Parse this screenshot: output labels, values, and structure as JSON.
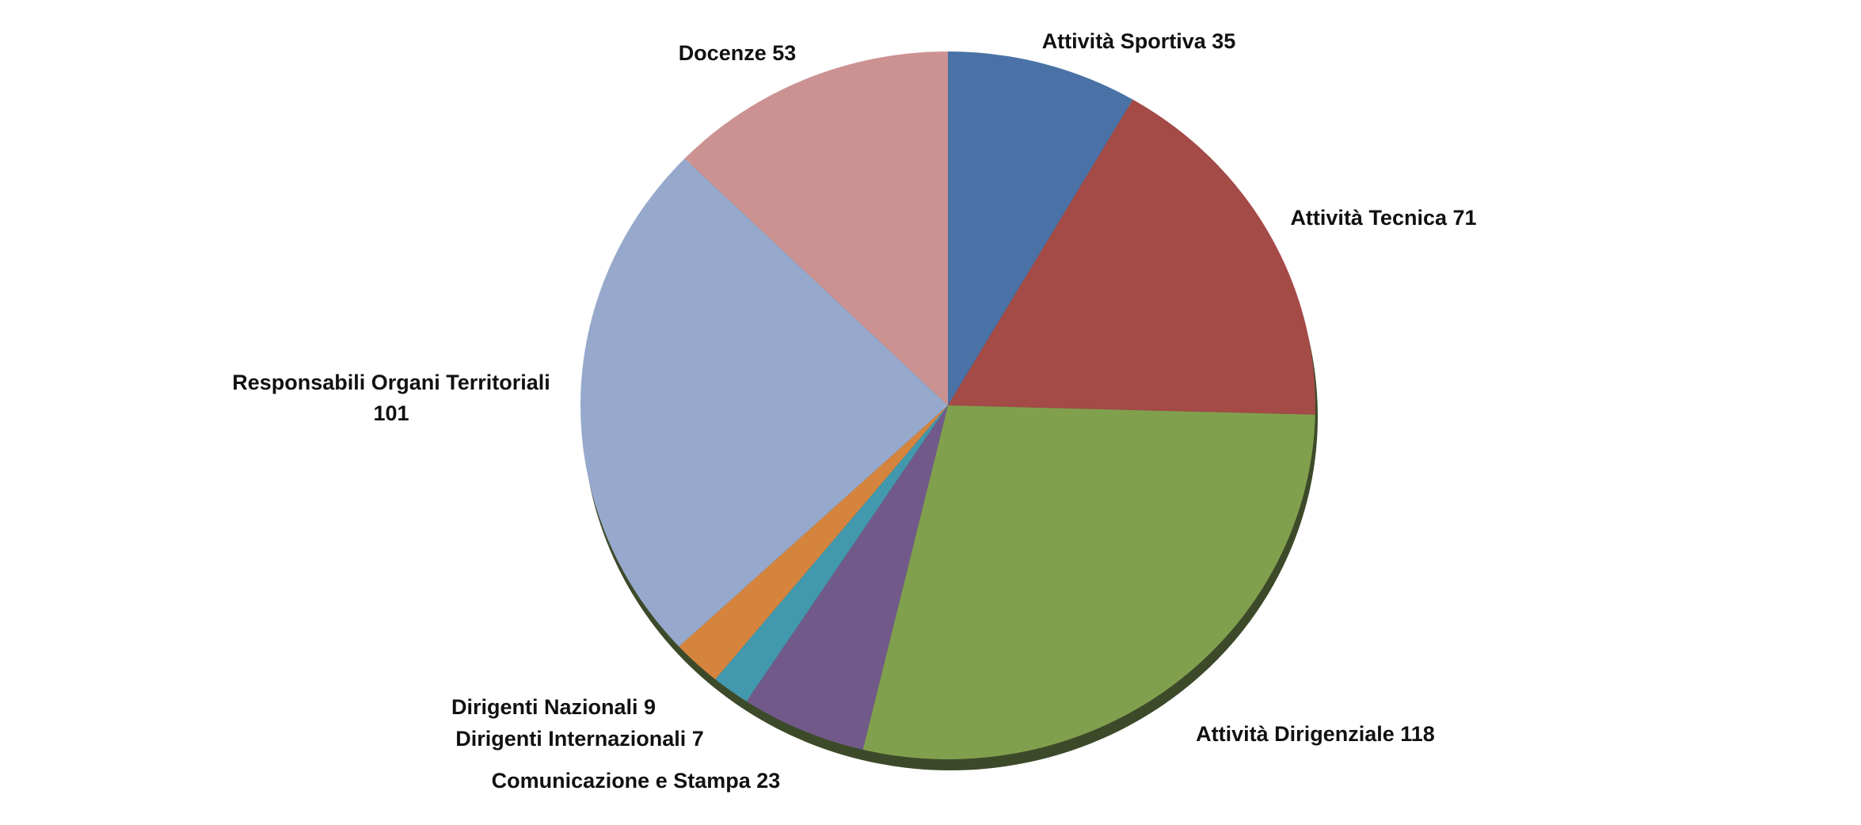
{
  "chart_data": {
    "type": "pie",
    "categories": [
      "Attività Sportiva",
      "Attività Tecnica",
      "Attività Dirigenziale",
      "Comunicazione e Stampa",
      "Dirigenti Internazionali",
      "Dirigenti Nazionali",
      "Responsabili Organi Territoriali",
      "Docenze"
    ],
    "values": [
      35,
      71,
      118,
      23,
      7,
      9,
      101,
      53
    ],
    "colors": [
      "#4a72a6",
      "#a44a47",
      "#81a04e",
      "#715a8a",
      "#4298ad",
      "#d5843e",
      "#96a9cc",
      "#cc9292"
    ]
  }
}
